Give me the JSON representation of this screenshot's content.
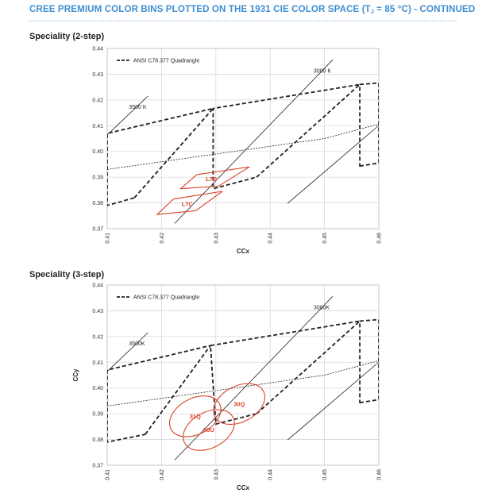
{
  "page": {
    "title_pre": "CREE PREMIUM COLOR BINS PLOTTED ON THE 1931 CIE COLOR SPACE (T",
    "title_sub": "J",
    "title_post": " = 85 °C) - CONTINUED",
    "colors": {
      "title": "#3f8fd2",
      "bins": "#d9452b",
      "lines": "#231f20",
      "grid": "#d9d9d9"
    }
  },
  "sections": [
    {
      "heading": "Speciality (2-step)"
    },
    {
      "heading": "Speciality (3-step)"
    }
  ],
  "chart_data": [
    {
      "type": "line",
      "title": "",
      "xlabel": "CCx",
      "ylabel": "",
      "xlim": [
        0.41,
        0.46
      ],
      "ylim": [
        0.37,
        0.44
      ],
      "x_ticks": [
        "0.41",
        "0.42",
        "0.43",
        "0.44",
        "0.45",
        "0.46"
      ],
      "y_ticks": [
        "0.37",
        "0.38",
        "0.39",
        "0.40",
        "0.41",
        "0.42",
        "0.43",
        "0.44"
      ],
      "grid": true,
      "legend": {
        "position": "top-left",
        "entries": [
          "ANSI C78.377 Quadrangle"
        ]
      },
      "cct_lines": [
        {
          "label": "3500 K",
          "points": [
            [
              0.4099,
              0.4062
            ],
            [
              0.4175,
              0.4215
            ]
          ]
        },
        {
          "label": "3000 K",
          "points": [
            [
              0.4224,
              0.372
            ],
            [
              0.4515,
              0.4356
            ]
          ]
        },
        {
          "label": "",
          "points": [
            [
              0.4432,
              0.3798
            ],
            [
              0.46,
              0.4101
            ]
          ]
        }
      ],
      "blackbody_curve": [
        [
          0.41,
          0.393
        ],
        [
          0.43,
          0.399
        ],
        [
          0.45,
          0.405
        ],
        [
          0.46,
          0.4106
        ]
      ],
      "ansi_quadrangles": [
        {
          "name": "3500K",
          "points": [
            [
              0.415,
              0.382
            ],
            [
              0.4295,
              0.4167
            ],
            [
              0.41,
              0.407
            ],
            [
              0.41,
              0.379
            ]
          ]
        },
        {
          "name": "3000K",
          "points": [
            [
              0.4375,
              0.39
            ],
            [
              0.4565,
              0.426
            ],
            [
              0.4295,
              0.4167
            ],
            [
              0.4295,
              0.3855
            ]
          ]
        },
        {
          "name": "",
          "points": [
            [
              0.4565,
              0.3943
            ],
            [
              0.46,
              0.3955
            ],
            [
              0.46,
              0.4266
            ],
            [
              0.4565,
              0.426
            ]
          ]
        }
      ],
      "bins": [
        {
          "name": "L7B",
          "points": [
            [
              0.4235,
              0.3855
            ],
            [
              0.4265,
              0.391
            ],
            [
              0.4362,
              0.394
            ],
            [
              0.4305,
              0.3865
            ]
          ]
        },
        {
          "name": "L7C",
          "points": [
            [
              0.4192,
              0.3755
            ],
            [
              0.4222,
              0.3815
            ],
            [
              0.4312,
              0.3845
            ],
            [
              0.4263,
              0.377
            ]
          ]
        }
      ]
    },
    {
      "type": "line",
      "title": "",
      "xlabel": "CCx",
      "ylabel": "CCy",
      "xlim": [
        0.41,
        0.46
      ],
      "ylim": [
        0.37,
        0.44
      ],
      "x_ticks": [
        "0.41",
        "0.42",
        "0.43",
        "0.44",
        "0.45",
        "0.46"
      ],
      "y_ticks": [
        "0.37",
        "0.38",
        "0.39",
        "0.40",
        "0.41",
        "0.42",
        "0.43",
        "0.44"
      ],
      "grid": true,
      "legend": {
        "position": "top-left",
        "entries": [
          "ANSI C78.377 Quadrangle"
        ]
      },
      "cct_lines": [
        {
          "label": "3500K",
          "points": [
            [
              0.4099,
              0.4062
            ],
            [
              0.4175,
              0.4215
            ]
          ]
        },
        {
          "label": "3000K",
          "points": [
            [
              0.4224,
              0.372
            ],
            [
              0.4515,
              0.4356
            ]
          ]
        },
        {
          "label": "",
          "points": [
            [
              0.4432,
              0.3798
            ],
            [
              0.46,
              0.4101
            ]
          ]
        }
      ],
      "blackbody_curve": [
        [
          0.41,
          0.393
        ],
        [
          0.43,
          0.399
        ],
        [
          0.45,
          0.405
        ],
        [
          0.46,
          0.4106
        ]
      ],
      "ansi_quadrangles": [
        {
          "name": "3500K",
          "points": [
            [
              0.417,
              0.382
            ],
            [
              0.429,
              0.4165
            ],
            [
              0.41,
              0.407
            ],
            [
              0.41,
              0.379
            ]
          ]
        },
        {
          "name": "3000K",
          "points": [
            [
              0.4375,
              0.39
            ],
            [
              0.4565,
              0.426
            ],
            [
              0.429,
              0.4165
            ],
            [
              0.43,
              0.386
            ]
          ]
        },
        {
          "name": "",
          "points": [
            [
              0.4565,
              0.3943
            ],
            [
              0.46,
              0.3955
            ],
            [
              0.46,
              0.4266
            ],
            [
              0.4565,
              0.426
            ]
          ]
        }
      ],
      "bins": [
        {
          "name": "31Q",
          "center": [
            0.4262,
            0.389
          ],
          "rx": 0.006,
          "ry": 0.0085,
          "angle_deg": 28
        },
        {
          "name": "30Q",
          "center": [
            0.4343,
            0.3938
          ],
          "rx": 0.006,
          "ry": 0.0085,
          "angle_deg": 28
        },
        {
          "name": "30U",
          "center": [
            0.4287,
            0.3837
          ],
          "rx": 0.006,
          "ry": 0.0085,
          "angle_deg": 28
        }
      ]
    }
  ]
}
